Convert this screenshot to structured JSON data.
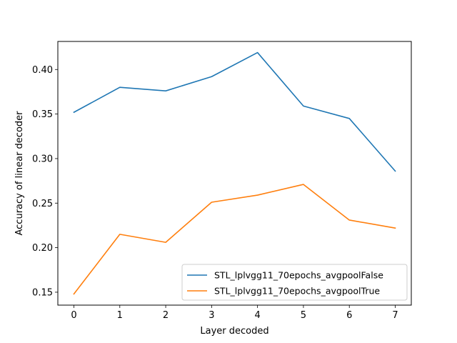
{
  "chart_data": {
    "type": "line",
    "x": [
      0,
      1,
      2,
      3,
      4,
      5,
      6,
      7
    ],
    "xlabel": "Layer decoded",
    "ylabel": "Accuracy of linear decoder",
    "xlim": [
      -0.35,
      7.35
    ],
    "ylim": [
      0.1355,
      0.4315
    ],
    "xticks": [
      "0",
      "1",
      "2",
      "3",
      "4",
      "5",
      "6",
      "7"
    ],
    "yticks": [
      "0.15",
      "0.20",
      "0.25",
      "0.30",
      "0.35",
      "0.40"
    ],
    "grid": false,
    "legend_position": "lower-right",
    "series": [
      {
        "name": "STL_lplvgg11_70epochs_avgpoolFalse",
        "color": "#1f77b4",
        "values": [
          0.352,
          0.38,
          0.376,
          0.392,
          0.419,
          0.359,
          0.345,
          0.286
        ]
      },
      {
        "name": "STL_lplvgg11_70epochs_avgpoolTrue",
        "color": "#ff7f0e",
        "values": [
          0.148,
          0.215,
          0.206,
          0.251,
          0.259,
          0.271,
          0.231,
          0.222
        ]
      }
    ]
  }
}
